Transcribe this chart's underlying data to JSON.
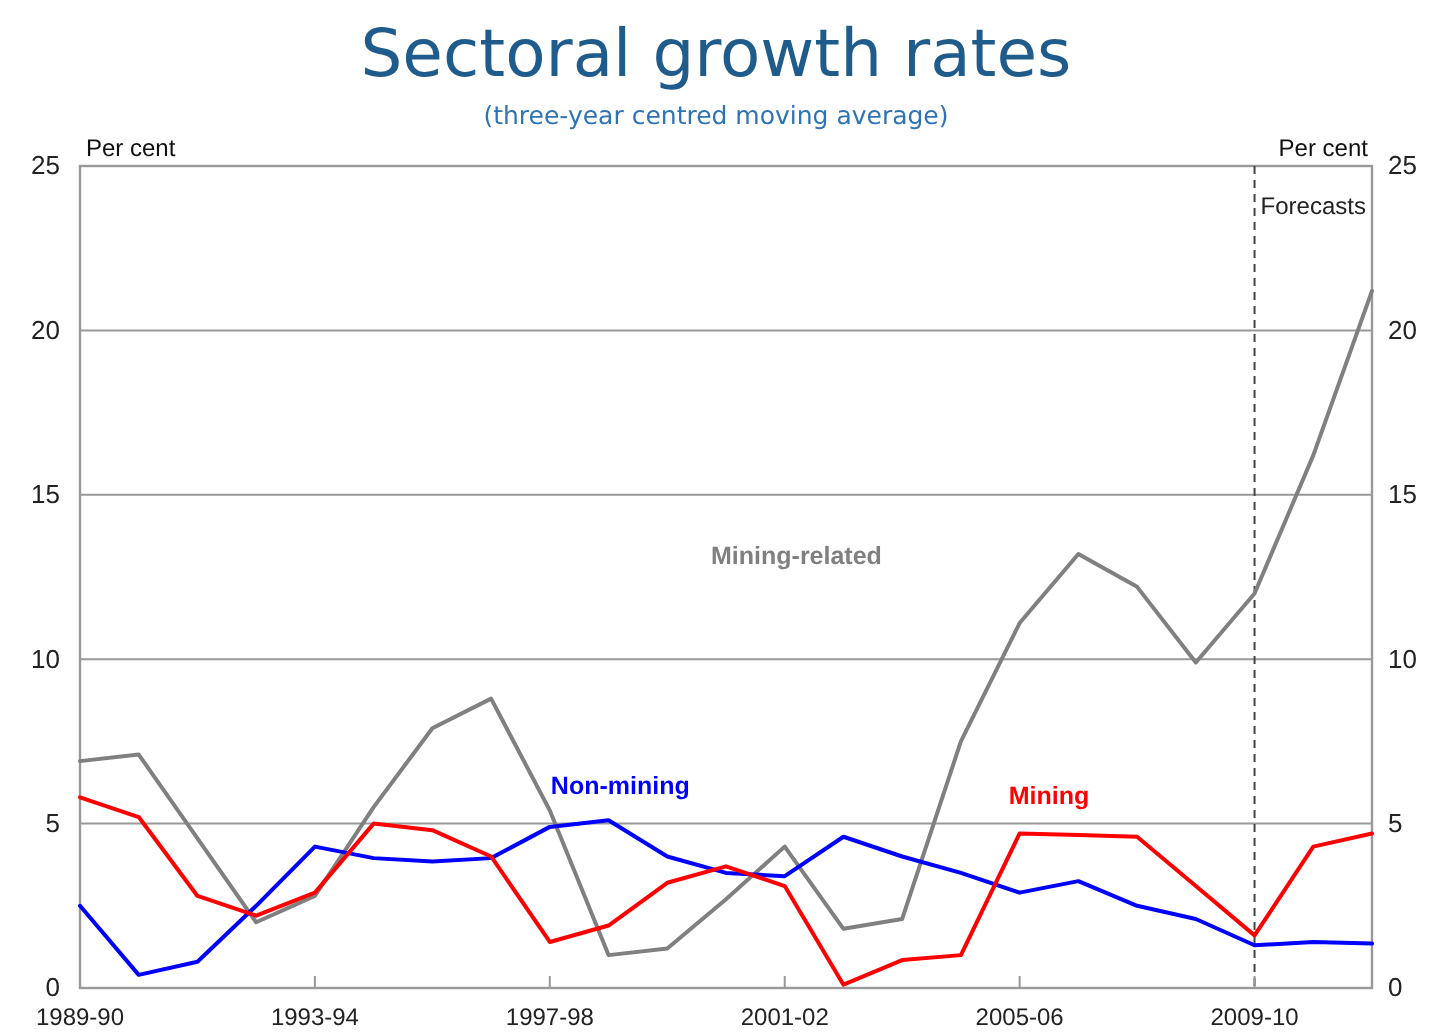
{
  "chart_data": {
    "type": "line",
    "title": "Sectoral growth rates",
    "subtitle": "(three-year centred moving average)",
    "ylabel": "Per cent",
    "y2label": "Per cent",
    "categories": [
      "1989-90",
      null,
      null,
      null,
      "1993-94",
      null,
      null,
      null,
      "1997-98",
      null,
      null,
      null,
      "2001-02",
      null,
      null,
      null,
      "2005-06",
      null,
      null,
      null,
      "2009-10",
      null,
      null
    ],
    "series": [
      {
        "name": "Mining-related",
        "color": "#808080",
        "values": [
          6.9,
          7.1,
          4.55,
          2.0,
          2.8,
          5.5,
          7.9,
          8.8,
          5.4,
          1.0,
          1.2,
          2.7,
          4.3,
          1.8,
          2.1,
          7.5,
          11.1,
          13.2,
          12.2,
          9.9,
          12.0,
          16.2,
          21.2
        ]
      },
      {
        "name": "Non-mining",
        "color": "#0000ff",
        "values": [
          2.5,
          0.4,
          0.8,
          2.5,
          4.3,
          3.95,
          3.85,
          3.95,
          4.9,
          5.1,
          4.0,
          3.5,
          3.4,
          4.6,
          4.0,
          3.5,
          2.9,
          3.25,
          2.5,
          2.1,
          1.3,
          1.4,
          1.35
        ]
      },
      {
        "name": "Mining",
        "color": "#ff0000",
        "values": [
          5.8,
          5.2,
          2.8,
          2.2,
          2.9,
          5.0,
          4.8,
          4.0,
          1.4,
          1.9,
          3.2,
          3.7,
          3.1,
          0.1,
          0.85,
          1.0,
          4.7,
          4.65,
          4.6,
          3.1,
          1.6,
          4.3,
          4.7
        ]
      }
    ],
    "ylim": [
      0,
      25
    ],
    "yticks": [
      0,
      5,
      10,
      15,
      20,
      25
    ],
    "y2lim": [
      0,
      25
    ],
    "y2ticks": [
      0,
      5,
      10,
      15,
      20,
      25
    ],
    "grid": "y",
    "legend": false,
    "line_style": "solid",
    "marker": "none",
    "ref_lines": [
      {
        "axis": "x",
        "value": "2009-10",
        "label": "Forecasts",
        "color": "#444444",
        "line_style": "dashed"
      }
    ]
  }
}
